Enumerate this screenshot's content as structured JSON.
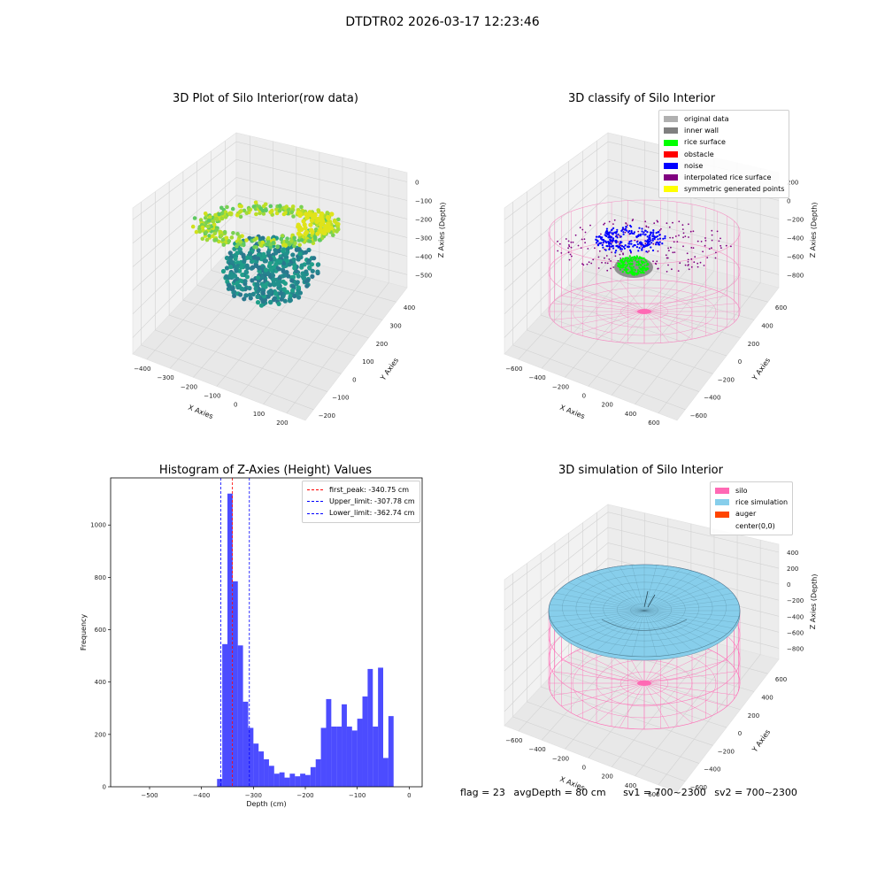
{
  "figure": {
    "suptitle": "DTDTR02 2026-03-17 12:23:46",
    "footer": {
      "flag": "flag = 23",
      "avg_depth": "avgDepth = 80 cm",
      "sv1": "sv1 = 700~2300",
      "sv2": "sv2 = 700~2300"
    }
  },
  "chart_data": [
    {
      "type": "scatter",
      "title": "3D Plot of Silo Interior(row data)",
      "xlabel": "X Axies",
      "ylabel": "Y Axies",
      "zlabel": "Z Axies (Depth)",
      "xlim": [
        -450,
        220
      ],
      "ylim": [
        -250,
        420
      ],
      "zlim": [
        -560,
        30
      ],
      "x_ticks": [
        "−400",
        "−300",
        "−200",
        "−100",
        "0",
        "100",
        "200"
      ],
      "y_ticks": [
        "−200",
        "−100",
        "0",
        "100",
        "200",
        "300",
        "400"
      ],
      "z_ticks": [
        "0",
        "−100",
        "−200",
        "−300",
        "−400",
        "−500"
      ],
      "colormap": "viridis",
      "point_groups": [
        {
          "desc": "upper ring",
          "z_range": [
            -240,
            -150
          ],
          "color": "#7ad151"
        },
        {
          "desc": "lower mound",
          "z_range": [
            -560,
            -300
          ],
          "color": "#21918c"
        }
      ]
    },
    {
      "type": "scatter",
      "title": "3D classify of Silo Interior",
      "xlabel": "X Axies",
      "ylabel": "Y Axies",
      "zlabel": "Z Axies (Depth)",
      "xlim": [
        -700,
        700
      ],
      "ylim": [
        -700,
        700
      ],
      "zlim": [
        -900,
        300
      ],
      "x_ticks": [
        "−600",
        "−400",
        "−200",
        "0",
        "200",
        "400",
        "600"
      ],
      "y_ticks": [
        "−600",
        "−400",
        "−200",
        "0",
        "200",
        "400",
        "600"
      ],
      "z_ticks": [
        "200",
        "0",
        "−200",
        "−400",
        "−600",
        "−800"
      ],
      "legend": [
        {
          "label": "original data",
          "color": "#b0b0b0"
        },
        {
          "label": "inner wall",
          "color": "#808080"
        },
        {
          "label": "rice surface",
          "color": "#00ff00"
        },
        {
          "label": "obstacle",
          "color": "#ff0000"
        },
        {
          "label": "noise",
          "color": "#0000ff"
        },
        {
          "label": "interpolated rice surface",
          "color": "#800080"
        },
        {
          "label": "symmetric generated points",
          "color": "#ffff00"
        }
      ],
      "silo_color": "#f48ac0"
    },
    {
      "type": "bar",
      "title": "Histogram of Z-Axies (Height) Values",
      "xlabel": "Depth (cm)",
      "ylabel": "Frequency",
      "xlim": [
        -575,
        25
      ],
      "ylim": [
        0,
        1180
      ],
      "x_ticks": [
        -500,
        -400,
        -300,
        -200,
        -100,
        0
      ],
      "y_ticks": [
        0,
        200,
        400,
        600,
        800,
        1000
      ],
      "bin_width": 10,
      "bin_starts": [
        -370,
        -360,
        -350,
        -340,
        -330,
        -320,
        -310,
        -300,
        -290,
        -280,
        -270,
        -260,
        -250,
        -240,
        -230,
        -220,
        -210,
        -200,
        -190,
        -180,
        -170,
        -160,
        -150,
        -140,
        -130,
        -120,
        -110,
        -100,
        -90,
        -80,
        -70,
        -60,
        -50,
        -40,
        -30,
        -20,
        -10
      ],
      "values": [
        30,
        545,
        1120,
        785,
        540,
        325,
        225,
        165,
        135,
        105,
        80,
        50,
        55,
        35,
        50,
        40,
        50,
        45,
        75,
        105,
        225,
        335,
        230,
        230,
        315,
        230,
        215,
        260,
        345,
        450,
        230,
        455,
        110,
        270,
        0,
        0,
        0
      ],
      "bar_color": "#0000ff",
      "lines": [
        {
          "label": "first_peak: -340.75 cm",
          "x": -340.75,
          "color": "#ff0000"
        },
        {
          "label": "Upper_limit: -307.78 cm",
          "x": -307.78,
          "color": "#0000ff"
        },
        {
          "label": "Lower_limit: -362.74 cm",
          "x": -362.74,
          "color": "#0000ff"
        }
      ]
    },
    {
      "type": "scatter",
      "title": "3D simulation of Silo Interior",
      "xlabel": "X Axies",
      "ylabel": "Y Axies",
      "zlabel": "Z Axies (Depth)",
      "xlim": [
        -700,
        700
      ],
      "ylim": [
        -700,
        700
      ],
      "zlim": [
        -900,
        500
      ],
      "x_ticks": [
        "−600",
        "−400",
        "−200",
        "0",
        "200",
        "400",
        "600"
      ],
      "y_ticks": [
        "−600",
        "−400",
        "−200",
        "0",
        "200",
        "400",
        "600"
      ],
      "z_ticks": [
        "400",
        "200",
        "0",
        "−200",
        "−400",
        "−600",
        "−800"
      ],
      "legend": [
        {
          "label": "silo",
          "color": "#ff69b4"
        },
        {
          "label": "rice simulation",
          "color": "#87ceeb"
        },
        {
          "label": "auger",
          "color": "#ff4500"
        },
        {
          "label": "center(0,0)",
          "color": "#ffffff"
        }
      ]
    }
  ]
}
